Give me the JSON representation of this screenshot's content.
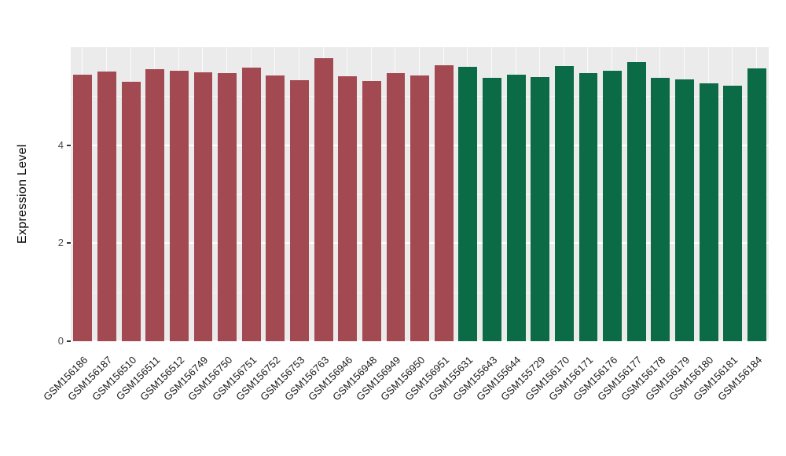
{
  "figure": {
    "y_axis_title": "Expression Level",
    "y_ticks": [
      0,
      2,
      4
    ],
    "panel_background": "#EBEBEB",
    "gridline_color": "#FFFFFF",
    "group_colors": {
      "red": "#A34952",
      "green": "#0B6B46"
    }
  },
  "chart_data": {
    "type": "bar",
    "title": "",
    "xlabel": "",
    "ylabel": "Expression Level",
    "ylim": [
      0,
      6
    ],
    "grid": "on",
    "legend_position": "none",
    "categories": [
      "GSM156186",
      "GSM156187",
      "GSM156510",
      "GSM156511",
      "GSM156512",
      "GSM156749",
      "GSM156750",
      "GSM156751",
      "GSM156752",
      "GSM156753",
      "GSM156763",
      "GSM156946",
      "GSM156948",
      "GSM156949",
      "GSM156950",
      "GSM156951",
      "GSM155631",
      "GSM155643",
      "GSM155644",
      "GSM155729",
      "GSM156170",
      "GSM156171",
      "GSM156176",
      "GSM156177",
      "GSM156178",
      "GSM156179",
      "GSM156180",
      "GSM156181",
      "GSM156184"
    ],
    "values": [
      5.44,
      5.5,
      5.29,
      5.55,
      5.52,
      5.49,
      5.47,
      5.58,
      5.42,
      5.33,
      5.78,
      5.41,
      5.31,
      5.47,
      5.42,
      5.63,
      5.6,
      5.37,
      5.44,
      5.39,
      5.62,
      5.47,
      5.52,
      5.7,
      5.37,
      5.34,
      5.26,
      5.21,
      5.57
    ],
    "groups": [
      "red",
      "red",
      "red",
      "red",
      "red",
      "red",
      "red",
      "red",
      "red",
      "red",
      "red",
      "red",
      "red",
      "red",
      "red",
      "red",
      "green",
      "green",
      "green",
      "green",
      "green",
      "green",
      "green",
      "green",
      "green",
      "green",
      "green",
      "green",
      "green"
    ],
    "major_gridlines_y": [
      0,
      2,
      4
    ],
    "minor_gridlines_y": [
      1,
      3,
      5
    ]
  }
}
